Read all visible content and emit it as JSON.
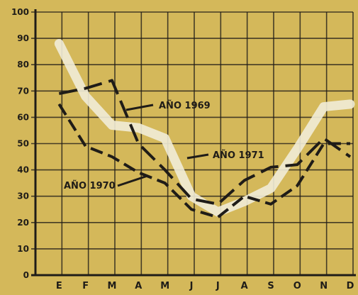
{
  "chart_data": {
    "type": "line",
    "categories": [
      "E",
      "F",
      "M",
      "A",
      "M",
      "J",
      "J",
      "A",
      "S",
      "O",
      "N",
      "D"
    ],
    "ylim": [
      0,
      100
    ],
    "yticks": [
      0,
      10,
      20,
      30,
      40,
      50,
      60,
      70,
      80,
      90,
      100
    ],
    "grid": true,
    "series": [
      {
        "name": "AÑO 1969",
        "values": [
          69,
          71,
          74,
          50,
          40,
          29,
          27,
          36,
          41,
          42,
          52,
          45
        ],
        "color": "#1f1c18",
        "style": "dashed-long"
      },
      {
        "name": "AÑO 1970",
        "values": [
          65,
          49,
          45,
          39,
          35,
          25,
          22,
          30,
          27,
          34,
          50,
          50
        ],
        "color": "#1f1c18",
        "style": "dashed"
      },
      {
        "name": "AÑO 1971",
        "values": [
          88,
          68,
          57,
          56,
          52,
          30,
          24,
          28,
          33,
          48,
          64,
          65
        ],
        "color": "#f1ecd7",
        "style": "thick"
      }
    ],
    "annotations": [
      {
        "text": "AÑO 1969",
        "series": "AÑO 1969"
      },
      {
        "text": "AÑO 1971",
        "series": "AÑO 1971"
      },
      {
        "text": "AÑO 1970",
        "series": "AÑO 1970"
      }
    ],
    "colors": {
      "background": "#d4b85a",
      "ink": "#1f1c18",
      "highlight": "#f1ecd7"
    }
  }
}
